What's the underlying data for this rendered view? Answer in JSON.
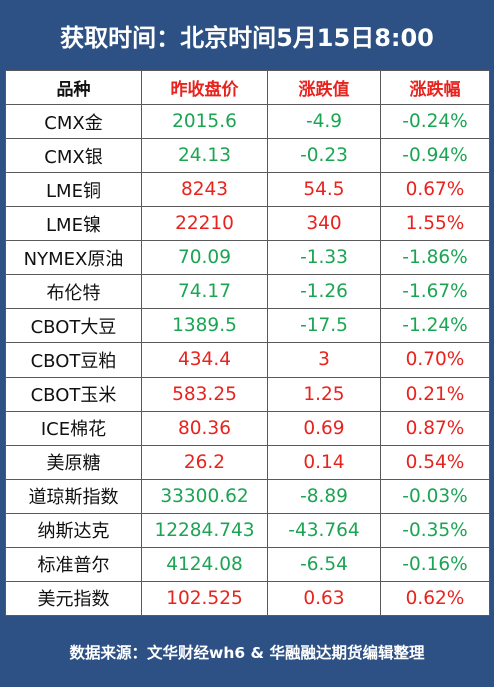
{
  "header": {
    "title": "获取时间：北京时间5月15日8:00"
  },
  "table": {
    "columns": [
      "品种",
      "昨收盘价",
      "涨跌值",
      "涨跌幅"
    ],
    "rows": [
      {
        "name": "CMX金",
        "close": "2015.6",
        "change": "-4.9",
        "pct": "-0.24%",
        "dir": "neg"
      },
      {
        "name": "CMX银",
        "close": "24.13",
        "change": "-0.23",
        "pct": "-0.94%",
        "dir": "neg"
      },
      {
        "name": "LME铜",
        "close": "8243",
        "change": "54.5",
        "pct": "0.67%",
        "dir": "pos"
      },
      {
        "name": "LME镍",
        "close": "22210",
        "change": "340",
        "pct": "1.55%",
        "dir": "pos"
      },
      {
        "name": "NYMEX原油",
        "close": "70.09",
        "change": "-1.33",
        "pct": "-1.86%",
        "dir": "neg"
      },
      {
        "name": "布伦特",
        "close": "74.17",
        "change": "-1.26",
        "pct": "-1.67%",
        "dir": "neg"
      },
      {
        "name": "CBOT大豆",
        "close": "1389.5",
        "change": "-17.5",
        "pct": "-1.24%",
        "dir": "neg"
      },
      {
        "name": "CBOT豆粕",
        "close": "434.4",
        "change": "3",
        "pct": "0.70%",
        "dir": "pos"
      },
      {
        "name": "CBOT玉米",
        "close": "583.25",
        "change": "1.25",
        "pct": "0.21%",
        "dir": "pos"
      },
      {
        "name": "ICE棉花",
        "close": "80.36",
        "change": "0.69",
        "pct": "0.87%",
        "dir": "pos"
      },
      {
        "name": "美原糖",
        "close": "26.2",
        "change": "0.14",
        "pct": "0.54%",
        "dir": "pos"
      },
      {
        "name": "道琼斯指数",
        "close": "33300.62",
        "change": "-8.89",
        "pct": "-0.03%",
        "dir": "neg"
      },
      {
        "name": "纳斯达克",
        "close": "12284.743",
        "change": "-43.764",
        "pct": "-0.35%",
        "dir": "neg"
      },
      {
        "name": "标准普尔",
        "close": "4124.08",
        "change": "-6.54",
        "pct": "-0.16%",
        "dir": "neg"
      },
      {
        "name": "美元指数",
        "close": "102.525",
        "change": "0.63",
        "pct": "0.62%",
        "dir": "pos"
      }
    ]
  },
  "footer": {
    "source": "数据来源：文华财经wh6 & 华融融达期货编辑整理"
  },
  "colors": {
    "header_bg": "#2d5184",
    "up": "#e8231e",
    "down": "#1ba553"
  }
}
